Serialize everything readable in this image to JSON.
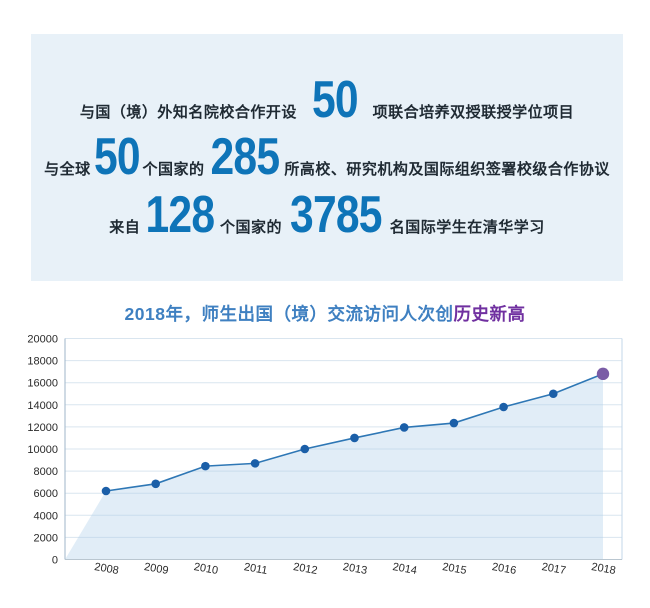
{
  "stats": {
    "rows": [
      {
        "segments": [
          "与国（境）外知名院校合作开设",
          "50",
          "项联合培养双授联授学位项目"
        ]
      },
      {
        "segments": [
          "与全球",
          "50",
          "个国家的",
          "285",
          "所高校、研究机构及国际组织签署校级合作协议"
        ]
      },
      {
        "segments": [
          "来自",
          "128",
          "个国家的",
          "3785",
          "名国际学生在清华学习"
        ]
      }
    ]
  },
  "chart": {
    "title_main": "2018年，师生出国（境）交流访问人次创",
    "title_highlight": "历史新高"
  },
  "chart_data": {
    "type": "line",
    "title": "2018年，师生出国（境）交流访问人次创历史新高",
    "x": [
      2008,
      2009,
      2010,
      2011,
      2012,
      2013,
      2014,
      2015,
      2016,
      2017,
      2018
    ],
    "series": [
      {
        "name": "师生出国（境）交流访问人次",
        "values": [
          6200,
          6850,
          8450,
          8700,
          10000,
          11000,
          11950,
          12350,
          13800,
          15000,
          16800
        ]
      }
    ],
    "ylim": [
      0,
      20000
    ],
    "ytick_step": 2000,
    "grid": true,
    "area_fill": true,
    "highlight_last_point": true,
    "legend": "none",
    "xlabel": "",
    "ylabel": ""
  },
  "colors": {
    "page_bg": "#ffffff",
    "box_bg": "#e8f1f8",
    "accent_blue": "#0e74b8",
    "text_dark": "#1f2a33",
    "title_blue": "#3f80c1",
    "title_purple": "#7030a0",
    "line": "#2e77b5",
    "marker": "#1b5fa8",
    "marker_last": "#7a5ca6",
    "area_fill": "rgba(176,208,233,0.38)",
    "grid": "#d9e5ef",
    "axis_left": "#9fb6c9",
    "axis_right": "#c3d7e9",
    "axis_bottom": "#b9c6d0",
    "axis_text": "#2a2a2a"
  }
}
